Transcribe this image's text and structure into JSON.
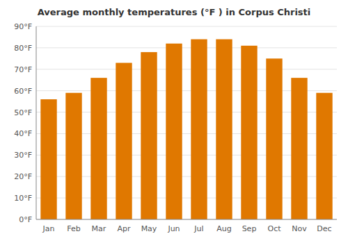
{
  "chart_data": {
    "type": "bar",
    "title": "Average monthly temperatures (°F ) in Corpus Christi",
    "categories": [
      "Jan",
      "Feb",
      "Mar",
      "Apr",
      "May",
      "Jun",
      "Jul",
      "Aug",
      "Sep",
      "Oct",
      "Nov",
      "Dec"
    ],
    "values": [
      56,
      59,
      66,
      73,
      78,
      82,
      84,
      84,
      81,
      75,
      66,
      59
    ],
    "color": "#E07800",
    "ylim": [
      0,
      90
    ],
    "yticks": [
      {
        "value": 0,
        "label": "0°F"
      },
      {
        "value": 10,
        "label": "10°F"
      },
      {
        "value": 20,
        "label": "20°F"
      },
      {
        "value": 30,
        "label": "30°F"
      },
      {
        "value": 40,
        "label": "40°F"
      },
      {
        "value": 50,
        "label": "50°F"
      },
      {
        "value": 60,
        "label": "60°F"
      },
      {
        "value": 70,
        "label": "70°F"
      },
      {
        "value": 80,
        "label": "80°F"
      },
      {
        "value": 90,
        "label": "90°F"
      }
    ],
    "grid": true
  }
}
